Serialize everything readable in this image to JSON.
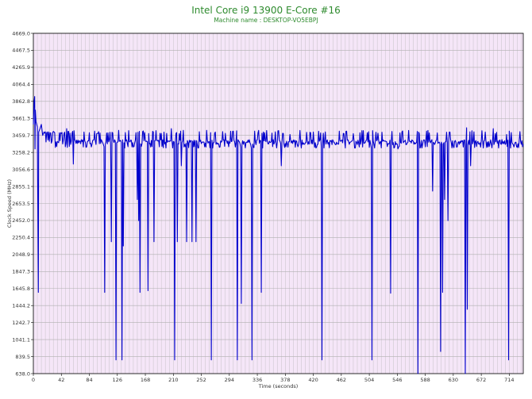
{
  "chart_data": {
    "type": "line",
    "title": "Intel Core i9 13900 E-Core #16",
    "subtitle": "Machine name : DESKTOP-VO5EBPJ",
    "xlabel": "Time (seconds)",
    "ylabel": "Clock Speed (MHz)",
    "xlim": [
      0,
      735
    ],
    "ylim": [
      638.0,
      4669.0
    ],
    "x_ticks": [
      0,
      42,
      84,
      126,
      168,
      210,
      252,
      294,
      336,
      378,
      420,
      462,
      504,
      546,
      588,
      630,
      672,
      714
    ],
    "y_ticks": [
      "638.0",
      "839.5",
      "1041.1",
      "1242.7",
      "1444.2",
      "1645.8",
      "1847.3",
      "2048.9",
      "2250.4",
      "2452.0",
      "2653.5",
      "2855.1",
      "3056.6",
      "3258.2",
      "3459.7",
      "3661.3",
      "3862.8",
      "4064.4",
      "4265.9",
      "4467.5",
      "4669.0"
    ],
    "grid": true,
    "background_color": "#f5e6f8",
    "line_color": "#0000cc",
    "grid_color": "#b0b0b0",
    "baseline_mhz": 3380,
    "series": [
      {
        "color": "#0000cc",
        "start": [
          [
            0,
            3590
          ],
          [
            1,
            3850
          ],
          [
            2,
            3920
          ],
          [
            3,
            3760
          ],
          [
            4,
            3620
          ],
          [
            6,
            3560
          ],
          [
            8,
            3500
          ],
          [
            10,
            3540
          ],
          [
            12,
            3590
          ],
          [
            14,
            3460
          ],
          [
            16,
            3500
          ]
        ],
        "dips": [
          [
            2,
            3300
          ],
          [
            7,
            1600
          ],
          [
            60,
            3120
          ],
          [
            107,
            1600
          ],
          [
            117,
            2200
          ],
          [
            124,
            800
          ],
          [
            133,
            800
          ],
          [
            135,
            2150
          ],
          [
            137,
            3310
          ],
          [
            156,
            2700
          ],
          [
            158,
            2450
          ],
          [
            160,
            1600
          ],
          [
            172,
            1620
          ],
          [
            181,
            2200
          ],
          [
            212,
            800
          ],
          [
            216,
            2200
          ],
          [
            222,
            3100
          ],
          [
            230,
            2200
          ],
          [
            238,
            2200
          ],
          [
            244,
            2200
          ],
          [
            247,
            3310
          ],
          [
            267,
            800
          ],
          [
            269,
            3310
          ],
          [
            306,
            800
          ],
          [
            312,
            1470
          ],
          [
            328,
            800
          ],
          [
            342,
            1600
          ],
          [
            344,
            3310
          ],
          [
            372,
            3100
          ],
          [
            402,
            3310
          ],
          [
            433,
            800
          ],
          [
            436,
            3310
          ],
          [
            508,
            800
          ],
          [
            512,
            3310
          ],
          [
            536,
            1590
          ],
          [
            547,
            3300
          ],
          [
            577,
            638
          ],
          [
            580,
            3310
          ],
          [
            599,
            2800
          ],
          [
            611,
            900
          ],
          [
            614,
            1600
          ],
          [
            617,
            2700
          ],
          [
            622,
            2450
          ],
          [
            648,
            638
          ],
          [
            651,
            1400
          ],
          [
            656,
            3100
          ],
          [
            675,
            3310
          ],
          [
            713,
            800
          ],
          [
            716,
            3310
          ]
        ],
        "spikes": [
          [
            50,
            3540
          ],
          [
            95,
            3480
          ],
          [
            128,
            3520
          ],
          [
            180,
            3500
          ],
          [
            207,
            3540
          ],
          [
            260,
            3520
          ],
          [
            300,
            3510
          ],
          [
            345,
            3500
          ],
          [
            385,
            3470
          ],
          [
            420,
            3500
          ],
          [
            470,
            3510
          ],
          [
            512,
            3490
          ],
          [
            553,
            3500
          ],
          [
            590,
            3510
          ],
          [
            625,
            3500
          ],
          [
            650,
            3550
          ],
          [
            690,
            3540
          ],
          [
            710,
            3470
          ]
        ]
      }
    ]
  }
}
